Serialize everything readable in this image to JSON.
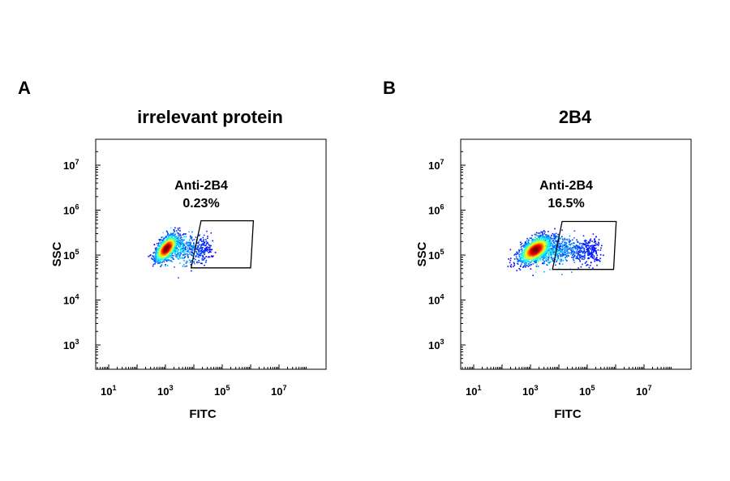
{
  "chart_data": [
    {
      "type": "scatter",
      "panel_label": "A",
      "title": "irrelevant protein",
      "xlabel": "FITC",
      "ylabel": "SSC",
      "x_scale": "log",
      "y_scale": "log",
      "xlim": [
        1,
        10000000
      ],
      "ylim": [
        100,
        10000000
      ],
      "x_tick_labels": [
        {
          "base": "10",
          "exp": "1"
        },
        {
          "base": "10",
          "exp": "3"
        },
        {
          "base": "10",
          "exp": "5"
        },
        {
          "base": "10",
          "exp": "7"
        }
      ],
      "y_tick_labels": [
        {
          "base": "10",
          "exp": "3"
        },
        {
          "base": "10",
          "exp": "4"
        },
        {
          "base": "10",
          "exp": "5"
        },
        {
          "base": "10",
          "exp": "6"
        },
        {
          "base": "10",
          "exp": "7"
        }
      ],
      "gate": {
        "name": "Anti-2B4",
        "percent": "0.23%",
        "polygon": [
          [
            8000,
            52000
          ],
          [
            18000,
            580000
          ],
          [
            1250000,
            580000
          ],
          [
            1000000,
            52000
          ]
        ]
      },
      "population": {
        "center": [
          1100,
          140000
        ],
        "spread_x": 0.35,
        "spread_y": 0.14,
        "tail_to": 40000,
        "points": 1600
      },
      "grid": false
    },
    {
      "type": "scatter",
      "panel_label": "B",
      "title": "2B4",
      "xlabel": "FITC",
      "ylabel": "SSC",
      "x_scale": "log",
      "y_scale": "log",
      "xlim": [
        1,
        10000000
      ],
      "ylim": [
        100,
        10000000
      ],
      "x_tick_labels": [
        {
          "base": "10",
          "exp": "1"
        },
        {
          "base": "10",
          "exp": "3"
        },
        {
          "base": "10",
          "exp": "5"
        },
        {
          "base": "10",
          "exp": "7"
        }
      ],
      "y_tick_labels": [
        {
          "base": "10",
          "exp": "3"
        },
        {
          "base": "10",
          "exp": "4"
        },
        {
          "base": "10",
          "exp": "5"
        },
        {
          "base": "10",
          "exp": "6"
        },
        {
          "base": "10",
          "exp": "7"
        }
      ],
      "gate": {
        "name": "Anti-2B4",
        "percent": "16.5%",
        "polygon": [
          [
            6000,
            48000
          ],
          [
            13000,
            560000
          ],
          [
            1050000,
            560000
          ],
          [
            850000,
            48000
          ]
        ]
      },
      "population": {
        "center": [
          1500,
          130000
        ],
        "spread_x": 0.5,
        "spread_y": 0.14,
        "tail_to": 250000,
        "points": 2200
      },
      "grid": false
    }
  ]
}
